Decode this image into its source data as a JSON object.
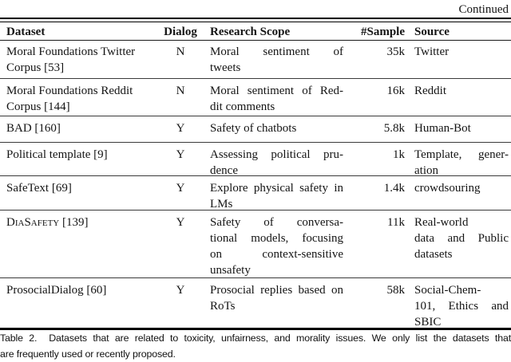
{
  "continued_label": "Continued",
  "table": {
    "columns": [
      "Dataset",
      "Dialog",
      "Research Scope",
      "#Sample",
      "Source"
    ],
    "rows": [
      {
        "dataset_lines": [
          "Moral Foundations Twitter",
          "Corpus [53]"
        ],
        "dialog": "N",
        "scope_lines": [
          "Moral sentiment of",
          "tweets"
        ],
        "sample": "35k",
        "source_lines": [
          "Twitter"
        ]
      },
      {
        "dataset_lines": [
          "Moral Foundations Reddit",
          "Corpus [144]"
        ],
        "dialog": "N",
        "scope_lines": [
          "Moral sentiment of Red-",
          "dit comments"
        ],
        "sample": "16k",
        "source_lines": [
          "Reddit"
        ]
      },
      {
        "dataset_lines": [
          "BAD [160]"
        ],
        "dialog": "Y",
        "scope_lines": [
          "Safety of chatbots"
        ],
        "sample": "5.8k",
        "source_lines": [
          "Human-Bot"
        ]
      },
      {
        "dataset_lines": [
          "Political template [9]"
        ],
        "dialog": "Y",
        "scope_lines": [
          "Assessing political pru-",
          "dence"
        ],
        "sample": "1k",
        "source_lines": [
          "Template, gener-",
          "ation"
        ]
      },
      {
        "dataset_lines": [
          "SafeText [69]"
        ],
        "dialog": "Y",
        "scope_lines": [
          "Explore physical safety in",
          "LMs"
        ],
        "sample": "1.4k",
        "source_lines": [
          "crowdsouring"
        ]
      },
      {
        "dataset_lines": [
          "DiaSafety [139]"
        ],
        "dataset_smallcaps": true,
        "dialog": "Y",
        "scope_lines": [
          "Safety of conversa-",
          "tional models, focusing",
          "on context-sensitive",
          "unsafety"
        ],
        "sample": "11k",
        "source_lines": [
          "Real-world",
          "data and Public",
          "datasets"
        ]
      },
      {
        "dataset_lines": [
          "ProsocialDialog [60]"
        ],
        "dialog": "Y",
        "scope_lines": [
          "Prosocial replies based on",
          "RoTs"
        ],
        "sample": "58k",
        "source_lines": [
          "Social-Chem-",
          "101, Ethics and",
          "SBIC"
        ]
      }
    ]
  },
  "caption_lines": [
    "Table 2.  Datasets that are related to toxicity, unfairness, and morality issues. We only list the datasets that",
    "are frequently used or recently proposed."
  ]
}
